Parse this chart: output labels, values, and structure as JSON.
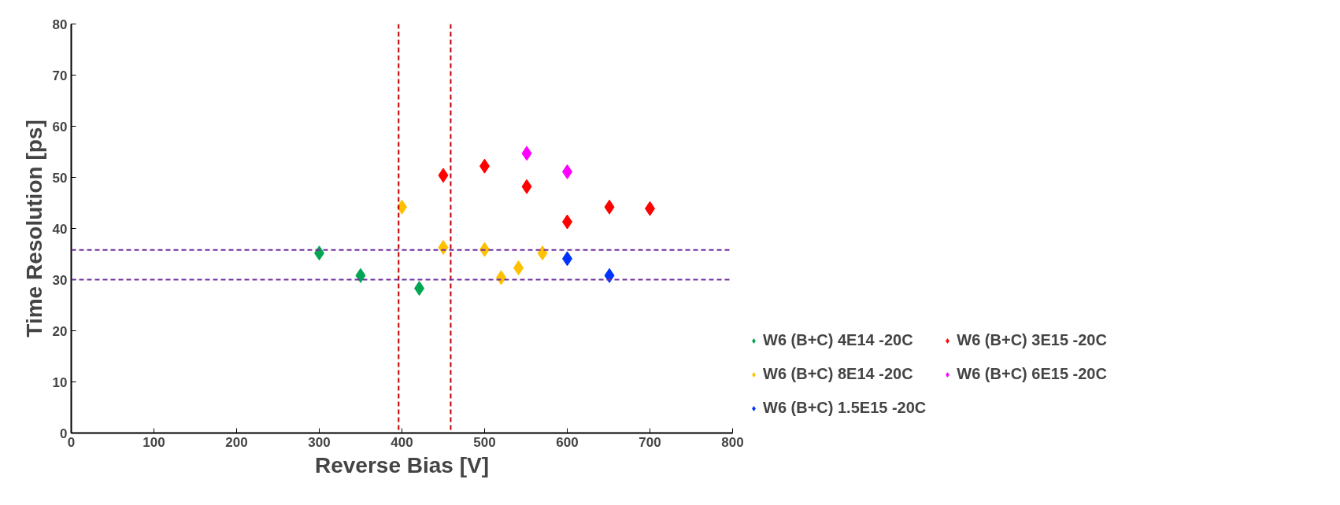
{
  "chart_data": {
    "type": "scatter",
    "xlabel": "Reverse Bias [V]",
    "ylabel": "Time Resolution [ps]",
    "xlim": [
      0,
      800
    ],
    "ylim": [
      0,
      80
    ],
    "xticks": [
      0,
      100,
      200,
      300,
      400,
      500,
      600,
      700,
      800
    ],
    "yticks": [
      0,
      10,
      20,
      30,
      40,
      50,
      60,
      70,
      80
    ],
    "marker": "diamond",
    "grid": false,
    "legend": "right",
    "series": [
      {
        "name": "W6 (B+C) 4E14 -20C",
        "color": "#00a651",
        "x": [
          300,
          350,
          421
        ],
        "values": [
          35.2,
          30.8,
          28.3
        ]
      },
      {
        "name": "W6 (B+C) 8E14 -20C",
        "color": "#ffc000",
        "x": [
          400,
          450,
          500,
          520,
          541,
          570
        ],
        "values": [
          44.2,
          36.3,
          35.9,
          30.4,
          32.3,
          35.2
        ]
      },
      {
        "name": "W6 (B+C) 1.5E15 -20C",
        "color": "#0033ff",
        "x": [
          600,
          651
        ],
        "values": [
          34.1,
          30.8
        ]
      },
      {
        "name": "W6 (B+C) 3E15 -20C",
        "color": "#ff0000",
        "x": [
          450,
          500,
          551,
          600,
          651,
          700
        ],
        "values": [
          50.4,
          52.2,
          48.2,
          41.3,
          44.2,
          43.9
        ]
      },
      {
        "name": "W6 (B+C) 6E15 -20C",
        "color": "#ff00ff",
        "x": [
          551,
          600
        ],
        "values": [
          54.7,
          51.1
        ]
      }
    ],
    "ref_lines": [
      {
        "axis": "x",
        "value": 396,
        "color": "#c00000",
        "line_style": "dashed"
      },
      {
        "axis": "x",
        "value": 459,
        "color": "#c00000",
        "line_style": "dashed"
      },
      {
        "axis": "y",
        "value": 35.8,
        "color": "#7030a0",
        "line_style": "dashed"
      },
      {
        "axis": "y",
        "value": 30.0,
        "color": "#7030a0",
        "line_style": "dashed"
      }
    ]
  }
}
